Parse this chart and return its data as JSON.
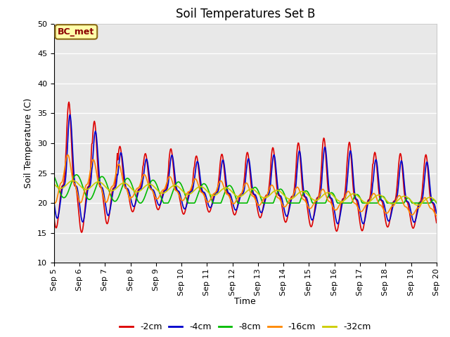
{
  "title": "Soil Temperatures Set B",
  "xlabel": "Time",
  "ylabel": "Soil Temperature (C)",
  "ylim": [
    10,
    50
  ],
  "x_tick_labels": [
    "Sep 5",
    "Sep 6",
    "Sep 7",
    "Sep 8",
    "Sep 9",
    "Sep 10",
    "Sep 11",
    "Sep 12",
    "Sep 13",
    "Sep 14",
    "Sep 15",
    "Sep 16",
    "Sep 17",
    "Sep 18",
    "Sep 19",
    "Sep 20"
  ],
  "annotation_text": "BC_met",
  "annotation_color": "#8B0000",
  "annotation_bg": "#FFFFAA",
  "series": [
    {
      "label": "-2cm",
      "color": "#DD0000",
      "linewidth": 1.2
    },
    {
      "label": "-4cm",
      "color": "#0000CC",
      "linewidth": 1.2
    },
    {
      "label": "-8cm",
      "color": "#00BB00",
      "linewidth": 1.2
    },
    {
      "label": "-16cm",
      "color": "#FF8800",
      "linewidth": 1.2
    },
    {
      "label": "-32cm",
      "color": "#CCCC00",
      "linewidth": 1.2
    }
  ],
  "background_color": "#E8E8E8",
  "figure_bg": "#FFFFFF",
  "title_fontsize": 12,
  "label_fontsize": 9,
  "tick_fontsize": 8,
  "legend_fontsize": 9,
  "grid_color": "#FFFFFF",
  "grid_linewidth": 1.0
}
